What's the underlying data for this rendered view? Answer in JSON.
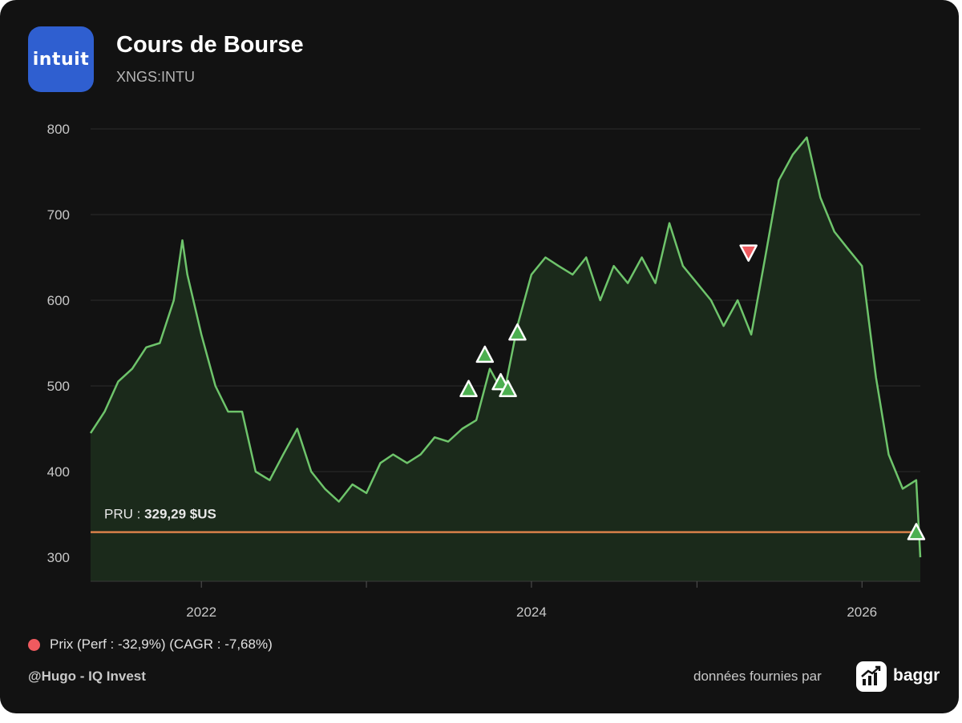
{
  "header": {
    "logo_text": "intuit",
    "title": "Cours de Bourse",
    "ticker": "XNGS:INTU"
  },
  "legend": {
    "label": "Prix (Perf : -32,9%) (CAGR : -7,68%)",
    "color": "#ef5a5f"
  },
  "footer": {
    "credit": "@Hugo - IQ Invest",
    "source_label": "données fournies par",
    "brand": "baggr"
  },
  "chart_data": {
    "type": "area",
    "title": "Cours de Bourse",
    "subtitle": "XNGS:INTU",
    "xlabel": "",
    "ylabel": "",
    "ylim": [
      280,
      810
    ],
    "xlim": [
      "2021-05-01",
      "2026-05-10"
    ],
    "y_ticks": [
      300,
      400,
      500,
      600,
      700,
      800
    ],
    "x_ticks": [
      {
        "date": "2022-01-01",
        "label": "2022"
      },
      {
        "date": "2024-01-01",
        "label": "2024"
      },
      {
        "date": "2026-01-01",
        "label": "2026"
      }
    ],
    "grid": true,
    "line_color": "#6ec46b",
    "fill_color": "#1b2a1b",
    "reference_line": {
      "value": 329.29,
      "prefix": "PRU :",
      "label": "329,29 $US",
      "color": "#d9804a"
    },
    "series": [
      {
        "x": [
          "2021-05-01",
          "2021-06-01",
          "2021-07-01",
          "2021-08-01",
          "2021-09-01",
          "2021-10-01",
          "2021-11-01",
          "2021-11-20",
          "2021-12-01",
          "2022-01-01",
          "2022-02-01",
          "2022-03-01",
          "2022-04-01",
          "2022-05-01",
          "2022-06-01",
          "2022-07-01",
          "2022-08-01",
          "2022-09-01",
          "2022-10-01",
          "2022-11-01",
          "2022-12-01",
          "2023-01-01",
          "2023-02-01",
          "2023-03-01",
          "2023-04-01",
          "2023-05-01",
          "2023-06-01",
          "2023-07-01",
          "2023-08-01",
          "2023-09-01",
          "2023-10-01",
          "2023-11-01",
          "2023-12-01",
          "2024-01-01",
          "2024-02-01",
          "2024-03-01",
          "2024-04-01",
          "2024-05-01",
          "2024-06-01",
          "2024-07-01",
          "2024-08-01",
          "2024-09-01",
          "2024-10-01",
          "2024-11-01",
          "2024-12-01",
          "2025-01-01",
          "2025-02-01",
          "2025-03-01",
          "2025-04-01",
          "2025-05-01",
          "2025-06-01",
          "2025-07-01",
          "2025-08-01",
          "2025-09-01",
          "2025-10-01",
          "2025-11-01",
          "2025-12-01",
          "2026-01-01",
          "2026-02-01",
          "2026-03-01",
          "2026-04-01",
          "2026-05-01",
          "2026-05-10"
        ],
        "values": [
          445,
          470,
          505,
          520,
          545,
          550,
          600,
          670,
          630,
          560,
          500,
          470,
          470,
          400,
          390,
          420,
          450,
          400,
          380,
          365,
          385,
          375,
          410,
          420,
          410,
          420,
          440,
          435,
          450,
          460,
          520,
          490,
          570,
          630,
          650,
          640,
          630,
          650,
          600,
          640,
          620,
          650,
          620,
          690,
          640,
          620,
          600,
          570,
          600,
          560,
          650,
          740,
          770,
          790,
          720,
          680,
          660,
          640,
          510,
          420,
          380,
          390,
          300
        ]
      }
    ],
    "markers": [
      {
        "date": "2023-08-15",
        "value": 497,
        "type": "buy"
      },
      {
        "date": "2023-09-20",
        "value": 537,
        "type": "buy"
      },
      {
        "date": "2023-10-25",
        "value": 505,
        "type": "buy"
      },
      {
        "date": "2023-11-10",
        "value": 497,
        "type": "buy"
      },
      {
        "date": "2023-12-01",
        "value": 563,
        "type": "buy"
      },
      {
        "date": "2025-04-25",
        "value": 655,
        "type": "sell"
      },
      {
        "date": "2026-05-01",
        "value": 330,
        "type": "buy"
      }
    ]
  }
}
